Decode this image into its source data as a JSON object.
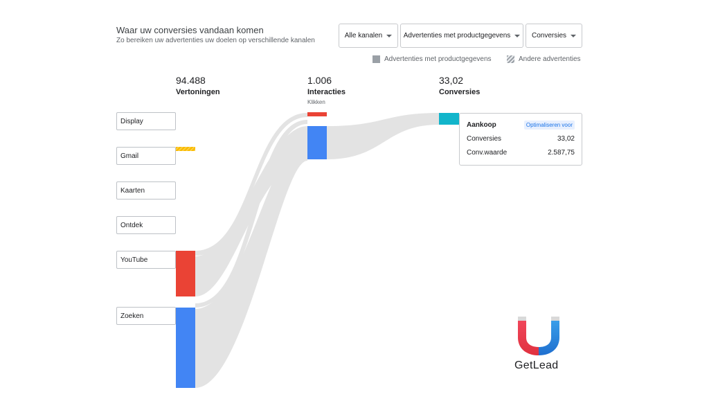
{
  "header": {
    "title": "Waar uw conversies vandaan komen",
    "subtitle": "Zo bereiken uw advertenties uw doelen op verschillende kanalen"
  },
  "filters": [
    {
      "label": "Alle kanalen"
    },
    {
      "label": "Advertenties met productgegevens"
    },
    {
      "label": "Conversies"
    }
  ],
  "legend": {
    "solid": "Advertenties met productgegevens",
    "hatched": "Andere advertenties"
  },
  "colors": {
    "youtube": "#ea4335",
    "search": "#4285f4",
    "gmail": "#fbbc04",
    "conversions": "#12b5cb",
    "flow": "#e3e3e3"
  },
  "chart_data": {
    "type": "sankey",
    "stages": [
      {
        "value": "94.488",
        "label": "Vertoningen",
        "sublabel": ""
      },
      {
        "value": "1.006",
        "label": "Interacties",
        "sublabel": "Klikken"
      },
      {
        "value": "33,02",
        "label": "Conversies",
        "sublabel": ""
      }
    ],
    "channels": [
      {
        "name": "Display"
      },
      {
        "name": "Gmail"
      },
      {
        "name": "Kaarten"
      },
      {
        "name": "Ontdek"
      },
      {
        "name": "YouTube"
      },
      {
        "name": "Zoeken"
      }
    ]
  },
  "detail_card": {
    "title": "Aankoop",
    "badge": "Optimaliseren voor",
    "rows": [
      {
        "label": "Conversies",
        "value": "33,02"
      },
      {
        "label": "Conv.waarde",
        "value": "2.587,75"
      }
    ]
  },
  "brand": {
    "name": "GetLead",
    "icon": "magnet-logo-icon"
  }
}
